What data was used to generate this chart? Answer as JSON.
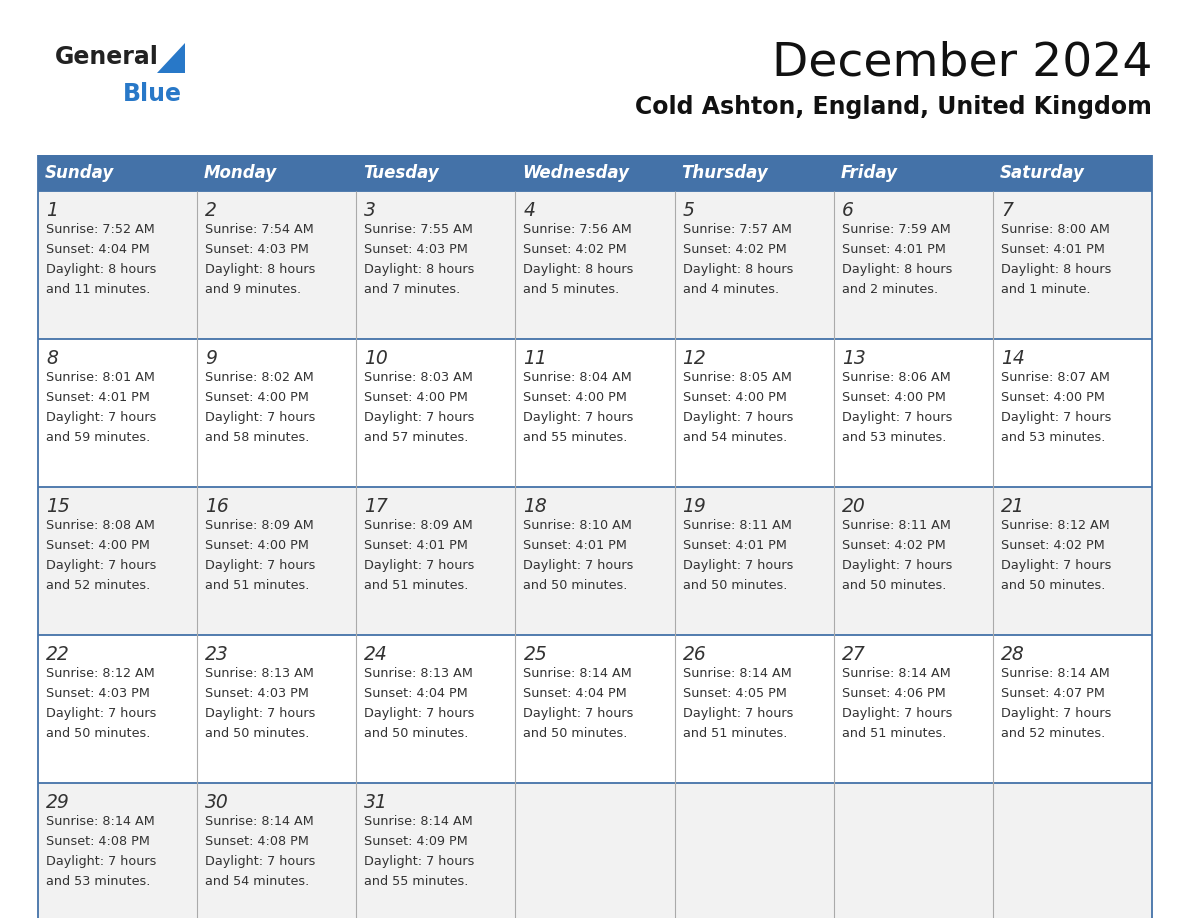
{
  "title": "December 2024",
  "subtitle": "Cold Ashton, England, United Kingdom",
  "days_of_week": [
    "Sunday",
    "Monday",
    "Tuesday",
    "Wednesday",
    "Thursday",
    "Friday",
    "Saturday"
  ],
  "header_bg": "#4472a8",
  "header_text": "#ffffff",
  "cell_bg_odd": "#f2f2f2",
  "cell_bg_even": "#ffffff",
  "border_color": "#4472a8",
  "grid_color": "#aaaaaa",
  "text_color": "#333333",
  "title_color": "#111111",
  "subtitle_color": "#111111",
  "logo_general_color": "#222222",
  "logo_blue_color": "#2878c8",
  "logo_triangle_color": "#2878c8",
  "calendar_data": [
    [
      {
        "day": 1,
        "sunrise": "7:52 AM",
        "sunset": "4:04 PM",
        "daylight_line1": "Daylight: 8 hours",
        "daylight_line2": "and 11 minutes."
      },
      {
        "day": 2,
        "sunrise": "7:54 AM",
        "sunset": "4:03 PM",
        "daylight_line1": "Daylight: 8 hours",
        "daylight_line2": "and 9 minutes."
      },
      {
        "day": 3,
        "sunrise": "7:55 AM",
        "sunset": "4:03 PM",
        "daylight_line1": "Daylight: 8 hours",
        "daylight_line2": "and 7 minutes."
      },
      {
        "day": 4,
        "sunrise": "7:56 AM",
        "sunset": "4:02 PM",
        "daylight_line1": "Daylight: 8 hours",
        "daylight_line2": "and 5 minutes."
      },
      {
        "day": 5,
        "sunrise": "7:57 AM",
        "sunset": "4:02 PM",
        "daylight_line1": "Daylight: 8 hours",
        "daylight_line2": "and 4 minutes."
      },
      {
        "day": 6,
        "sunrise": "7:59 AM",
        "sunset": "4:01 PM",
        "daylight_line1": "Daylight: 8 hours",
        "daylight_line2": "and 2 minutes."
      },
      {
        "day": 7,
        "sunrise": "8:00 AM",
        "sunset": "4:01 PM",
        "daylight_line1": "Daylight: 8 hours",
        "daylight_line2": "and 1 minute."
      }
    ],
    [
      {
        "day": 8,
        "sunrise": "8:01 AM",
        "sunset": "4:01 PM",
        "daylight_line1": "Daylight: 7 hours",
        "daylight_line2": "and 59 minutes."
      },
      {
        "day": 9,
        "sunrise": "8:02 AM",
        "sunset": "4:00 PM",
        "daylight_line1": "Daylight: 7 hours",
        "daylight_line2": "and 58 minutes."
      },
      {
        "day": 10,
        "sunrise": "8:03 AM",
        "sunset": "4:00 PM",
        "daylight_line1": "Daylight: 7 hours",
        "daylight_line2": "and 57 minutes."
      },
      {
        "day": 11,
        "sunrise": "8:04 AM",
        "sunset": "4:00 PM",
        "daylight_line1": "Daylight: 7 hours",
        "daylight_line2": "and 55 minutes."
      },
      {
        "day": 12,
        "sunrise": "8:05 AM",
        "sunset": "4:00 PM",
        "daylight_line1": "Daylight: 7 hours",
        "daylight_line2": "and 54 minutes."
      },
      {
        "day": 13,
        "sunrise": "8:06 AM",
        "sunset": "4:00 PM",
        "daylight_line1": "Daylight: 7 hours",
        "daylight_line2": "and 53 minutes."
      },
      {
        "day": 14,
        "sunrise": "8:07 AM",
        "sunset": "4:00 PM",
        "daylight_line1": "Daylight: 7 hours",
        "daylight_line2": "and 53 minutes."
      }
    ],
    [
      {
        "day": 15,
        "sunrise": "8:08 AM",
        "sunset": "4:00 PM",
        "daylight_line1": "Daylight: 7 hours",
        "daylight_line2": "and 52 minutes."
      },
      {
        "day": 16,
        "sunrise": "8:09 AM",
        "sunset": "4:00 PM",
        "daylight_line1": "Daylight: 7 hours",
        "daylight_line2": "and 51 minutes."
      },
      {
        "day": 17,
        "sunrise": "8:09 AM",
        "sunset": "4:01 PM",
        "daylight_line1": "Daylight: 7 hours",
        "daylight_line2": "and 51 minutes."
      },
      {
        "day": 18,
        "sunrise": "8:10 AM",
        "sunset": "4:01 PM",
        "daylight_line1": "Daylight: 7 hours",
        "daylight_line2": "and 50 minutes."
      },
      {
        "day": 19,
        "sunrise": "8:11 AM",
        "sunset": "4:01 PM",
        "daylight_line1": "Daylight: 7 hours",
        "daylight_line2": "and 50 minutes."
      },
      {
        "day": 20,
        "sunrise": "8:11 AM",
        "sunset": "4:02 PM",
        "daylight_line1": "Daylight: 7 hours",
        "daylight_line2": "and 50 minutes."
      },
      {
        "day": 21,
        "sunrise": "8:12 AM",
        "sunset": "4:02 PM",
        "daylight_line1": "Daylight: 7 hours",
        "daylight_line2": "and 50 minutes."
      }
    ],
    [
      {
        "day": 22,
        "sunrise": "8:12 AM",
        "sunset": "4:03 PM",
        "daylight_line1": "Daylight: 7 hours",
        "daylight_line2": "and 50 minutes."
      },
      {
        "day": 23,
        "sunrise": "8:13 AM",
        "sunset": "4:03 PM",
        "daylight_line1": "Daylight: 7 hours",
        "daylight_line2": "and 50 minutes."
      },
      {
        "day": 24,
        "sunrise": "8:13 AM",
        "sunset": "4:04 PM",
        "daylight_line1": "Daylight: 7 hours",
        "daylight_line2": "and 50 minutes."
      },
      {
        "day": 25,
        "sunrise": "8:14 AM",
        "sunset": "4:04 PM",
        "daylight_line1": "Daylight: 7 hours",
        "daylight_line2": "and 50 minutes."
      },
      {
        "day": 26,
        "sunrise": "8:14 AM",
        "sunset": "4:05 PM",
        "daylight_line1": "Daylight: 7 hours",
        "daylight_line2": "and 51 minutes."
      },
      {
        "day": 27,
        "sunrise": "8:14 AM",
        "sunset": "4:06 PM",
        "daylight_line1": "Daylight: 7 hours",
        "daylight_line2": "and 51 minutes."
      },
      {
        "day": 28,
        "sunrise": "8:14 AM",
        "sunset": "4:07 PM",
        "daylight_line1": "Daylight: 7 hours",
        "daylight_line2": "and 52 minutes."
      }
    ],
    [
      {
        "day": 29,
        "sunrise": "8:14 AM",
        "sunset": "4:08 PM",
        "daylight_line1": "Daylight: 7 hours",
        "daylight_line2": "and 53 minutes."
      },
      {
        "day": 30,
        "sunrise": "8:14 AM",
        "sunset": "4:08 PM",
        "daylight_line1": "Daylight: 7 hours",
        "daylight_line2": "and 54 minutes."
      },
      {
        "day": 31,
        "sunrise": "8:14 AM",
        "sunset": "4:09 PM",
        "daylight_line1": "Daylight: 7 hours",
        "daylight_line2": "and 55 minutes."
      },
      null,
      null,
      null,
      null
    ]
  ]
}
